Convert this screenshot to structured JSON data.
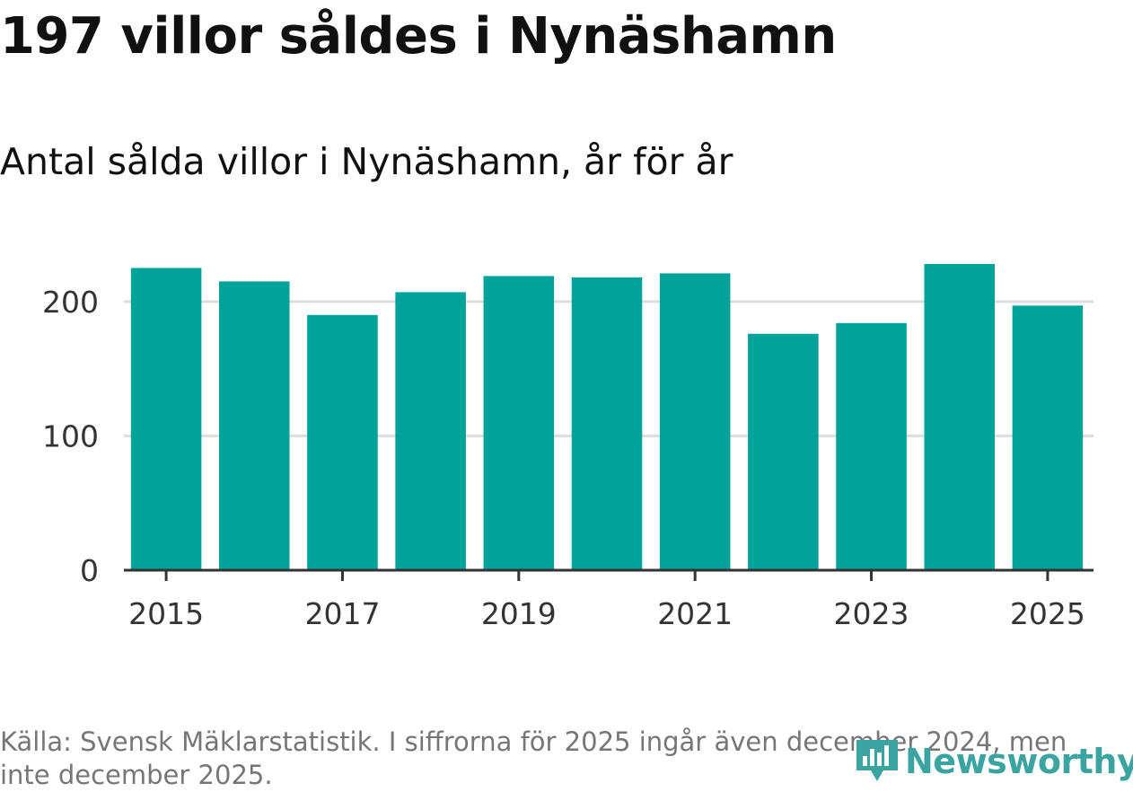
{
  "title": "197 villor såldes i Nynäshamn",
  "subtitle": "Antal sålda villor i Nynäshamn, år för år",
  "source": "Källa: Svensk Mäklarstatistik. I siffrorna för 2025 ingår även december 2024, men inte december 2025.",
  "logo": {
    "text": "Newsworthy",
    "icon": "newsworthy-logo-icon"
  },
  "colors": {
    "bar": "#00a39a",
    "grid": "#dddddd",
    "axis": "#333333"
  },
  "chart_data": {
    "type": "bar",
    "title": "Antal sålda villor i Nynäshamn, år för år",
    "xlabel": "",
    "ylabel": "",
    "categories": [
      "2015",
      "2016",
      "2017",
      "2018",
      "2019",
      "2020",
      "2021",
      "2022",
      "2023",
      "2024",
      "2025"
    ],
    "values": [
      225,
      215,
      190,
      207,
      219,
      218,
      221,
      176,
      184,
      228,
      197
    ],
    "ylim": [
      0,
      240
    ],
    "yticks": [
      0,
      100,
      200
    ],
    "xticks": [
      "2015",
      "2017",
      "2019",
      "2021",
      "2023",
      "2025"
    ],
    "grid": true
  }
}
